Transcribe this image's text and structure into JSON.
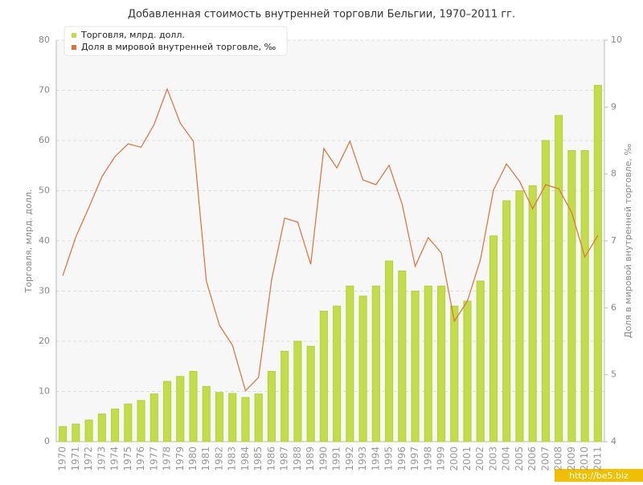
{
  "chart_data": {
    "type": "bar-line",
    "title": "Добавленная стоимость внутренней торговли Бельгии, 1970–2011 гг.",
    "y_label": "Торговля, млрд. долл.",
    "y2_label": "Доля в мировой внутренней торговле, ‰",
    "watermark": "http://be5.biz",
    "categories": [
      "1970",
      "1971",
      "1972",
      "1973",
      "1974",
      "1975",
      "1976",
      "1977",
      "1978",
      "1979",
      "1980",
      "1981",
      "1982",
      "1983",
      "1984",
      "1985",
      "1986",
      "1987",
      "1988",
      "1989",
      "1990",
      "1991",
      "1992",
      "1993",
      "1994",
      "1995",
      "1996",
      "1997",
      "1998",
      "1999",
      "2000",
      "2001",
      "2002",
      "2003",
      "2004",
      "2005",
      "2006",
      "2007",
      "2008",
      "2009",
      "2010",
      "2011"
    ],
    "series": [
      {
        "name": "Торговля, млрд. долл.",
        "type": "bar",
        "color": "#c3dc4a",
        "values": [
          3,
          3.5,
          4.3,
          5.5,
          6.5,
          7.5,
          8.2,
          9.5,
          12,
          13,
          14,
          11,
          9.8,
          9.6,
          8.8,
          9.5,
          14,
          18,
          20,
          19,
          26,
          27,
          31,
          29,
          31,
          36,
          34,
          30,
          31,
          31,
          27,
          28,
          32,
          41,
          48,
          50,
          51,
          60,
          65,
          58,
          58,
          71
        ]
      },
      {
        "name": "Доля в мировой внутренней торговле, ‰",
        "type": "line",
        "axis": "y2",
        "color": "#e0703a",
        "values": [
          6.48,
          7.06,
          7.5,
          7.96,
          8.26,
          8.45,
          8.4,
          8.74,
          9.27,
          8.76,
          8.49,
          6.4,
          5.74,
          5.44,
          4.76,
          4.96,
          6.42,
          7.34,
          7.28,
          6.65,
          8.38,
          8.09,
          8.49,
          7.91,
          7.84,
          8.13,
          7.55,
          6.62,
          7.05,
          6.82,
          5.8,
          6.1,
          6.72,
          7.76,
          8.15,
          7.89,
          7.48,
          7.84,
          7.78,
          7.42,
          6.76,
          7.08
        ]
      }
    ],
    "ylim": [
      0,
      80
    ],
    "yticks": [
      0,
      10,
      20,
      30,
      40,
      50,
      60,
      70,
      80
    ],
    "y2lim": [
      4,
      10
    ],
    "y2ticks": [
      4,
      5,
      6,
      7,
      8,
      9,
      10
    ],
    "grid": true,
    "legend": "top-left"
  }
}
